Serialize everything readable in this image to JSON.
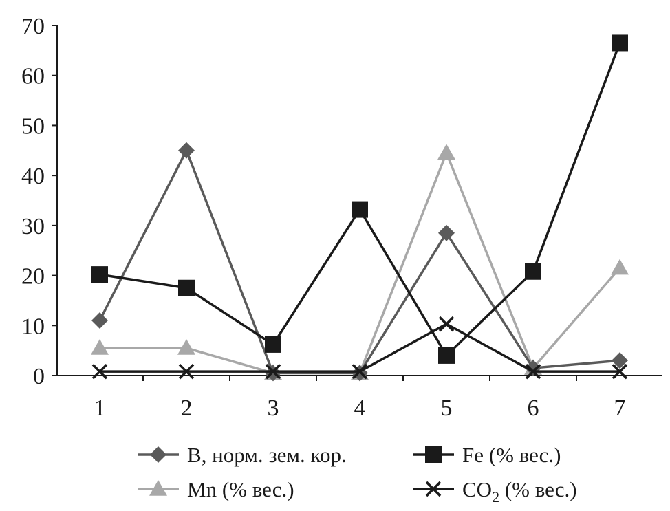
{
  "chart_data": {
    "type": "line",
    "categories": [
      "1",
      "2",
      "3",
      "4",
      "5",
      "6",
      "7"
    ],
    "ylim": [
      0,
      70
    ],
    "y_ticks": [
      "0",
      "10",
      "20",
      "30",
      "40",
      "50",
      "60",
      "70"
    ],
    "grid": false,
    "legend_position": "bottom",
    "series": [
      {
        "name": "B, норм. зем. кор.",
        "marker": "diamond",
        "color": "#5a5a5a",
        "values": [
          11,
          45,
          0.5,
          0.5,
          28.5,
          1.5,
          3
        ]
      },
      {
        "name": "Fe (% вес.)",
        "marker": "square",
        "color": "#1a1a1a",
        "values": [
          20.2,
          17.5,
          6.2,
          33.2,
          4,
          20.8,
          66.5
        ]
      },
      {
        "name": "Mn (% вес.)",
        "marker": "triangle",
        "color": "#a8a8a8",
        "values": [
          5.5,
          5.5,
          0.5,
          0.5,
          44.5,
          1.5,
          21.5
        ]
      },
      {
        "name": "CO2 (% вес.)",
        "name_base": "CO",
        "name_sub": "2",
        "name_rest": " (% вес.)",
        "marker": "x",
        "color": "#1a1a1a",
        "values": [
          0.8,
          0.8,
          0.8,
          0.8,
          10.3,
          0.8,
          0.8
        ]
      }
    ]
  }
}
